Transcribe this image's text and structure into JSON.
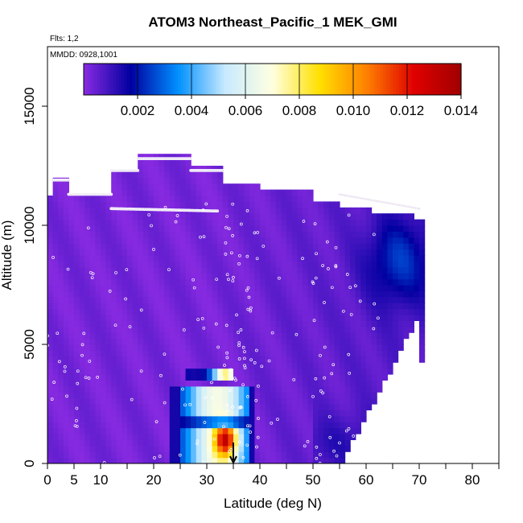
{
  "chart_data": {
    "type": "heatmap",
    "title": "ATOM3 Northeast_Pacific_1 MEK_GMI",
    "subtitle_flights": "Flts: 1,2",
    "subtitle_dates": "MMDD: 0928,1001",
    "xlabel": "Latitude (deg N)",
    "ylabel": "Altitude (m)",
    "xlim": [
      0,
      85
    ],
    "ylim": [
      0,
      17500
    ],
    "xticks": [
      0,
      5,
      10,
      20,
      30,
      40,
      50,
      60,
      70,
      80
    ],
    "yticks": [
      0,
      5000,
      10000,
      15000
    ],
    "colorbar": {
      "min": 0,
      "max": 0.014,
      "ticks": [
        "0.002",
        "0.004",
        "0.006",
        "0.008",
        "0.010",
        "0.012",
        "0.014"
      ],
      "colors": [
        "#8a2be2",
        "#0000a0",
        "#0090ff",
        "#c8eaff",
        "#ffffe0",
        "#ffe000",
        "#ff8000",
        "#e00000",
        "#a00000"
      ]
    },
    "background_value": 0.0003,
    "field_regions": [
      {
        "lat": [
          0,
          71
        ],
        "alt": [
          0,
          12000
        ],
        "note": "low-concentration background"
      },
      {
        "lat": [
          59,
          71
        ],
        "alt": [
          6500,
          10500
        ],
        "value": 0.0015
      },
      {
        "lat": [
          24,
          39
        ],
        "alt": [
          0,
          3200
        ],
        "value": 0.009
      },
      {
        "lat": [
          26,
          35
        ],
        "alt": [
          3400,
          4000
        ],
        "value": 0.007
      }
    ],
    "flight_tracks": [
      {
        "lat": [
          1,
          4
        ],
        "alt": [
          11900,
          11900
        ]
      },
      {
        "lat": [
          4,
          12
        ],
        "alt": [
          11300,
          11300
        ]
      },
      {
        "lat": [
          12,
          17
        ],
        "alt": [
          12300,
          12300
        ]
      },
      {
        "lat": [
          17,
          27
        ],
        "alt": [
          12800,
          12800
        ]
      },
      {
        "lat": [
          27,
          33
        ],
        "alt": [
          12300,
          12300
        ]
      },
      {
        "lat": [
          12,
          32
        ],
        "alt": [
          10700,
          10600
        ]
      },
      {
        "lat": [
          55,
          70
        ],
        "alt": [
          11300,
          10700
        ]
      }
    ],
    "marker": {
      "lat": 35,
      "alt": 0
    }
  }
}
